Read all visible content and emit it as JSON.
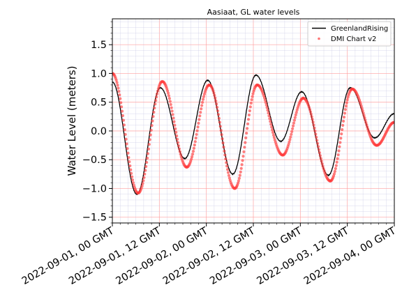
{
  "chart_data": {
    "type": "line",
    "title": "Aasiaat, GL water levels",
    "xlabel": "",
    "ylabel": "Water Level (meters)",
    "xlim": [
      "2022-09-01T00:00",
      "2022-09-04T00:00"
    ],
    "ylim": [
      -1.6,
      1.95
    ],
    "x_tick_labels": [
      "2022-09-01, 00 GMT",
      "2022-09-01, 12 GMT",
      "2022-09-02, 00 GMT",
      "2022-09-02, 12 GMT",
      "2022-09-03, 00 GMT",
      "2022-09-03, 12 GMT",
      "2022-09-04, 00 GMT"
    ],
    "y_ticks": [
      -1.5,
      -1.0,
      -0.5,
      0.0,
      0.5,
      1.0,
      1.5
    ],
    "y_tick_labels": [
      "−1.5",
      "−1.0",
      "−0.5",
      "0.0",
      "0.5",
      "1.0",
      "1.5"
    ],
    "grid": true,
    "legend_position": "top-right",
    "series": [
      {
        "name": "GreenlandRising",
        "style": "line",
        "color": "#000000",
        "x": [
          "2022-09-01T00:00",
          "2022-09-01T06:15",
          "2022-09-01T12:15",
          "2022-09-01T18:30",
          "2022-09-02T00:20",
          "2022-09-02T06:45",
          "2022-09-02T12:40",
          "2022-09-02T19:00",
          "2022-09-03T00:20",
          "2022-09-03T07:10",
          "2022-09-03T12:45",
          "2022-09-03T19:00",
          "2022-09-04T00:00"
        ],
        "y": [
          0.85,
          -1.1,
          0.75,
          -0.48,
          0.88,
          -0.75,
          0.97,
          -0.18,
          0.68,
          -0.77,
          0.75,
          -0.12,
          0.3
        ]
      },
      {
        "name": "DMI Chart v2",
        "style": "markers",
        "color": "#ff3b3b",
        "x": [
          "2022-09-01T00:00",
          "2022-09-01T06:35",
          "2022-09-01T12:45",
          "2022-09-01T19:00",
          "2022-09-02T00:45",
          "2022-09-02T07:15",
          "2022-09-02T13:00",
          "2022-09-02T19:30",
          "2022-09-03T00:45",
          "2022-09-03T07:40",
          "2022-09-03T13:15",
          "2022-09-03T19:30",
          "2022-09-04T00:00"
        ],
        "y": [
          1.0,
          -1.08,
          0.86,
          -0.63,
          0.8,
          -1.0,
          0.8,
          -0.42,
          0.57,
          -0.87,
          0.73,
          -0.25,
          0.15
        ]
      }
    ]
  }
}
